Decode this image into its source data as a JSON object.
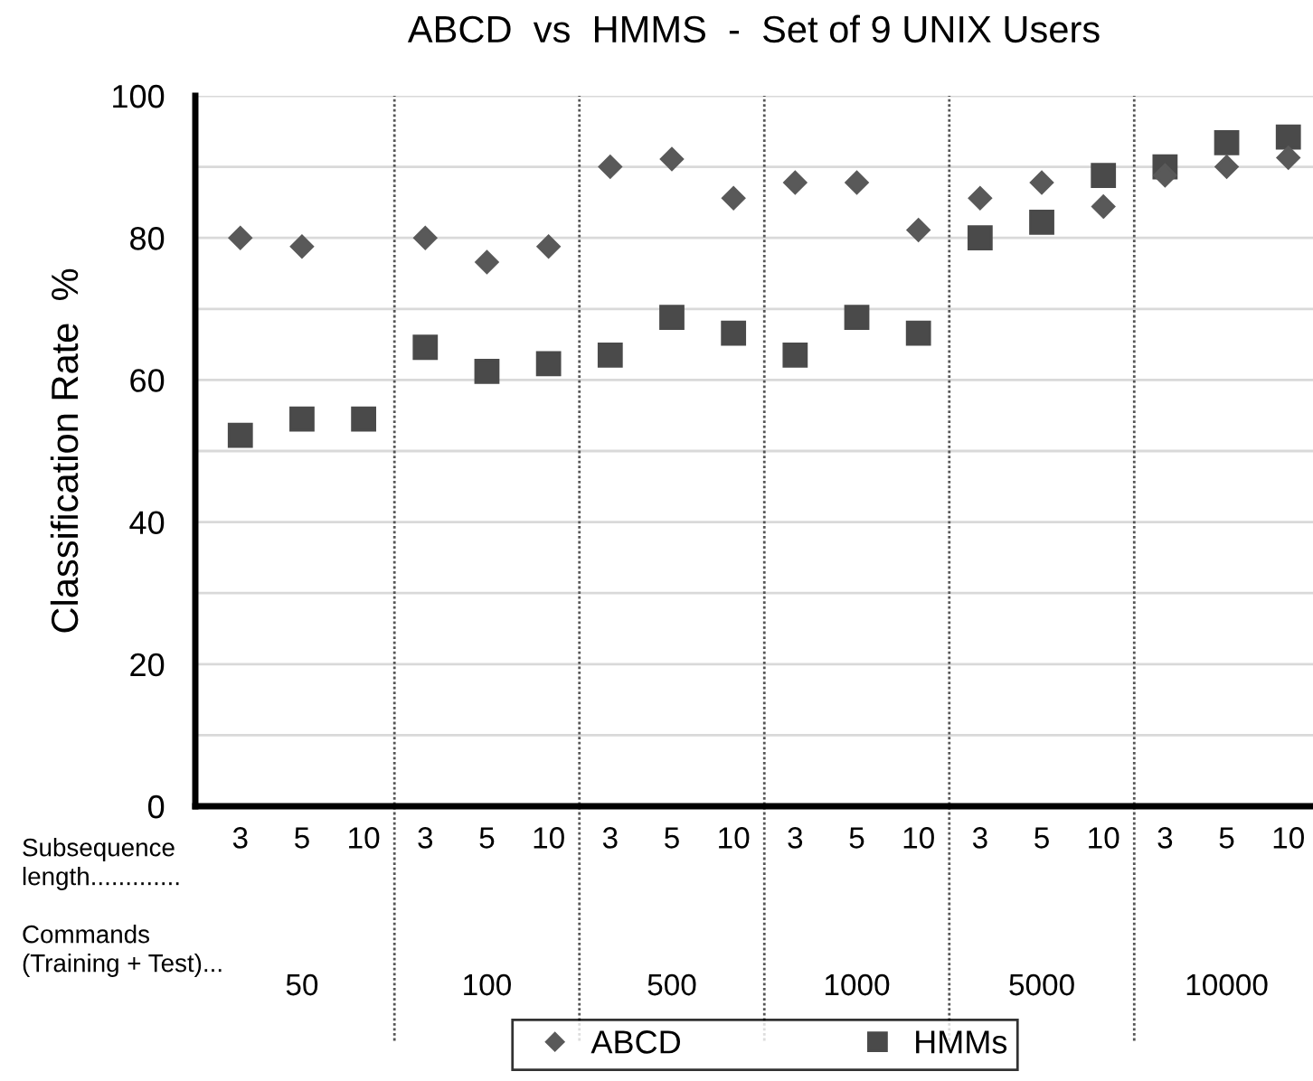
{
  "chart_data": {
    "type": "scatter",
    "title": "ABCD  vs  HMMS  -  Set of 9 UNIX Users",
    "ylabel": "Classification Rate  %",
    "categories": [
      "3",
      "5",
      "10",
      "3",
      "5",
      "10",
      "3",
      "5",
      "10",
      "3",
      "5",
      "10",
      "3",
      "5",
      "10",
      "3",
      "5",
      "10"
    ],
    "annotations": [
      "Subsequence\nlength.............",
      "Commands\n(Training + Test)...",
      "50",
      "100",
      "500",
      "1000",
      "5000",
      "10000"
    ],
    "series": [
      {
        "name": "ABCD",
        "color": "#595959",
        "marker": "diamond",
        "values": [
          80,
          78.8,
          null,
          80,
          76.6,
          78.8,
          90,
          91.1,
          85.6,
          87.8,
          87.8,
          81.1,
          85.6,
          87.8,
          84.4,
          88.8,
          90,
          91.3
        ]
      },
      {
        "name": "HMMs",
        "color": "#4a4a4a",
        "marker": "square",
        "values": [
          52.2,
          54.5,
          54.5,
          64.6,
          61.2,
          62.3,
          63.5,
          68.8,
          66.6,
          63.5,
          68.8,
          66.6,
          80,
          82.2,
          88.8,
          90,
          93.4,
          94.2
        ]
      }
    ],
    "ylim": [
      0,
      100
    ],
    "yticks": [
      0,
      {
        "value": 10,
        "label": null
      },
      20,
      {
        "value": 30,
        "label": null
      },
      40,
      {
        "value": 50,
        "label": null
      },
      60,
      {
        "value": 70,
        "label": null
      },
      80,
      {
        "value": 90,
        "label": null
      },
      100
    ],
    "grid": "y",
    "legend": "bottom"
  }
}
